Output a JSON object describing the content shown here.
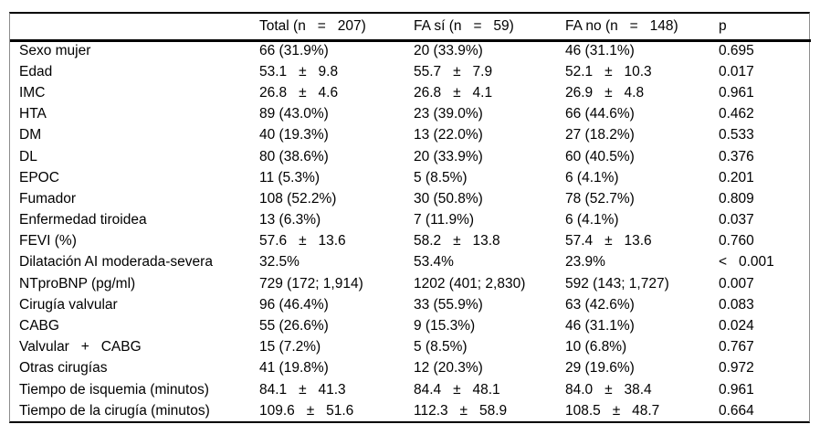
{
  "table": {
    "columns": [
      "",
      "Total (n   =   207)",
      "FA sí (n   =   59)",
      "FA no (n   =   148)",
      "p"
    ],
    "rows": [
      [
        "Sexo mujer",
        "66 (31.9%)",
        "20 (33.9%)",
        "46 (31.1%)",
        "0.695"
      ],
      [
        "Edad",
        "53.1   ±   9.8",
        "55.7   ±   7.9",
        "52.1   ±   10.3",
        "0.017"
      ],
      [
        "IMC",
        "26.8   ±   4.6",
        "26.8   ±   4.1",
        "26.9   ±   4.8",
        "0.961"
      ],
      [
        "HTA",
        "89 (43.0%)",
        "23 (39.0%)",
        "66 (44.6%)",
        "0.462"
      ],
      [
        "DM",
        "40 (19.3%)",
        "13 (22.0%)",
        "27 (18.2%)",
        "0.533"
      ],
      [
        "DL",
        "80 (38.6%)",
        "20 (33.9%)",
        "60 (40.5%)",
        "0.376"
      ],
      [
        "EPOC",
        "11 (5.3%)",
        "5 (8.5%)",
        "6 (4.1%)",
        "0.201"
      ],
      [
        "Fumador",
        "108 (52.2%)",
        "30 (50.8%)",
        "78 (52.7%)",
        "0.809"
      ],
      [
        "Enfermedad tiroidea",
        "13 (6.3%)",
        "7 (11.9%)",
        "6 (4.1%)",
        "0.037"
      ],
      [
        "FEVI (%)",
        "57.6   ±   13.6",
        "58.2   ±   13.8",
        "57.4   ±   13.6",
        "0.760"
      ],
      [
        "Dilatación AI moderada-severa",
        "32.5%",
        "53.4%",
        "23.9%",
        "<   0.001"
      ],
      [
        "NTproBNP (pg/ml)",
        "729 (172; 1,914)",
        "1202 (401; 2,830)",
        "592 (143; 1,727)",
        "0.007"
      ],
      [
        "Cirugía valvular",
        "96 (46.4%)",
        "33 (55.9%)",
        "63 (42.6%)",
        "0.083"
      ],
      [
        "CABG",
        "55 (26.6%)",
        "9 (15.3%)",
        "46 (31.1%)",
        "0.024"
      ],
      [
        "Valvular   +   CABG",
        "15 (7.2%)",
        "5 (8.5%)",
        "10 (6.8%)",
        "0.767"
      ],
      [
        "Otras cirugías",
        "41 (19.8%)",
        "12 (20.3%)",
        "29 (19.6%)",
        "0.972"
      ],
      [
        "Tiempo de isquemia (minutos)",
        "84.1   ±   41.3",
        "84.4   ±   48.1",
        "84.0   ±   38.4",
        "0.961"
      ],
      [
        "Tiempo de la cirugía (minutos)",
        "109.6   ±   51.6",
        "112.3   ±   58.9",
        "108.5   ±   48.7",
        "0.664"
      ]
    ],
    "colors": {
      "rule_color": "#000000",
      "side_border_color": "#8c8c8c",
      "text_color": "#000000",
      "background": "#ffffff"
    }
  }
}
